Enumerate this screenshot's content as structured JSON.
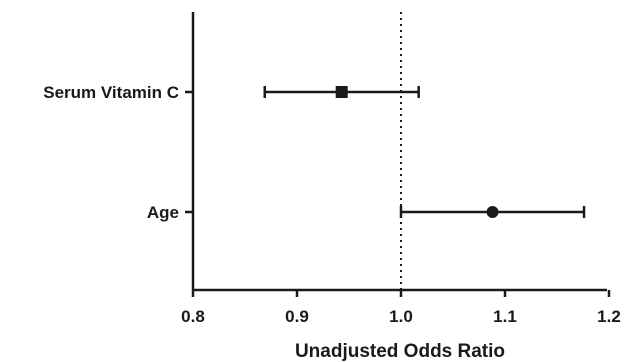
{
  "chart_data": {
    "type": "scatter",
    "subtype": "forest-plot",
    "title": "",
    "xlabel": "Unadjusted Odds Ratio",
    "ylabel": "",
    "xlim": [
      0.8,
      1.2
    ],
    "x_ticks": [
      0.8,
      0.9,
      1.0,
      1.1,
      1.2
    ],
    "x_tick_labels": [
      "0.8",
      "0.9",
      "1.0",
      "1.1",
      "1.2"
    ],
    "reference_line": 1.0,
    "reference_line_style": "dotted",
    "grid": false,
    "legend": "none",
    "categories": [
      "Serum Vitamin C",
      "Age"
    ],
    "points": [
      {
        "label": "Serum Vitamin C",
        "estimate": 0.943,
        "ci_low": 0.869,
        "ci_high": 1.017,
        "marker": "square"
      },
      {
        "label": "Age",
        "estimate": 1.088,
        "ci_low": 1.0,
        "ci_high": 1.176,
        "marker": "circle"
      }
    ],
    "colors": {
      "ink": "#1a1a1a",
      "background": "#ffffff"
    }
  }
}
